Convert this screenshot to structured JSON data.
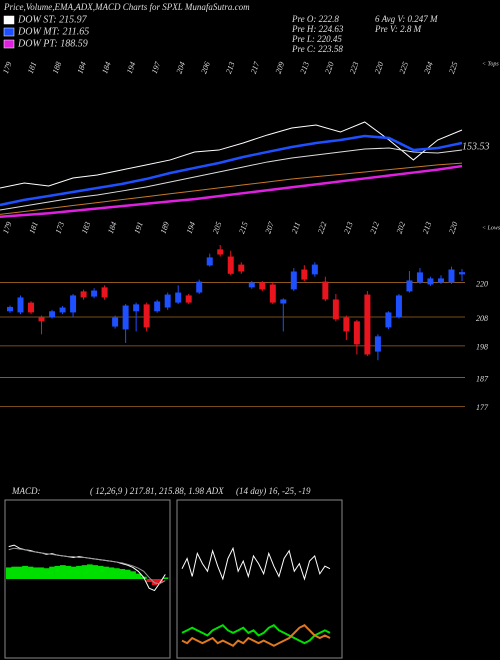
{
  "title": "Price,Volume,EMA,ADX,MACD Charts for SPXL MunafaSutra.com",
  "legend": [
    {
      "label": "DOW ST: 215.97",
      "color": "#ffffff"
    },
    {
      "label": "DOW MT: 211.65",
      "color": "#1e50ff"
    },
    {
      "label": "DOW PT: 188.59",
      "color": "#e020e0"
    }
  ],
  "stats": [
    "Pre O: 222.8",
    "Pre H: 224.63",
    "Pre L: 220.45",
    "Pre C: 223.58"
  ],
  "stats2": [
    "6 Avg V: 0.247 M",
    "Pre V: 2.8 M"
  ],
  "chart_data": [
    {
      "type": "line",
      "tops_label": "< Tops",
      "tops": [
        "179",
        "181",
        "188",
        "184",
        "184",
        "194",
        "197",
        "204",
        "206",
        "213",
        "217",
        "209",
        "213",
        "220",
        "223",
        "220",
        "225",
        "204",
        "225"
      ],
      "lows_label": "< Lows",
      "lows": [
        "179",
        "181",
        "173",
        "183",
        "184",
        "191",
        "189",
        "194",
        "205",
        "215",
        "207",
        "211",
        "222",
        "213",
        "212",
        "202",
        "213",
        "220"
      ],
      "annotation": "153.53",
      "ylim": [
        100,
        240
      ],
      "series": [
        {
          "name": "Price",
          "color": "#ffffff",
          "width": 1,
          "values": [
            131.4,
            135.6,
            133.1,
            139.9,
            142.4,
            146.7,
            150.9,
            155.2,
            161.9,
            163.6,
            169.6,
            176.4,
            182.3,
            184.8,
            178.9,
            187.4,
            172.1,
            155.2,
            172.1,
            180.6
          ]
        },
        {
          "name": "ST",
          "color": "#1e50ff",
          "width": 2.5,
          "values": [
            117,
            121.3,
            124.6,
            128,
            131.4,
            134.8,
            139,
            144.1,
            148.4,
            152.6,
            157.7,
            162,
            166.2,
            169.6,
            172.1,
            175.5,
            173.8,
            163.6,
            165.3,
            169.6
          ]
        },
        {
          "name": "MT",
          "color": "#dddddd",
          "width": 1,
          "values": [
            112.7,
            116.1,
            119.5,
            122.9,
            125.5,
            128.8,
            132.2,
            136.5,
            140.7,
            145,
            149.2,
            153.5,
            156.8,
            159.4,
            161.9,
            164.5,
            165.3,
            161.9,
            161.1,
            163.6
          ]
        },
        {
          "name": "LT",
          "color": "#c87828",
          "width": 1,
          "values": [
            109,
            111.5,
            114,
            116.5,
            119,
            121.5,
            124,
            126.5,
            129,
            131.5,
            134,
            136.5,
            139,
            141,
            143,
            145,
            147,
            149,
            151,
            152.5
          ]
        },
        {
          "name": "PT",
          "color": "#e020e0",
          "width": 2.5,
          "values": [
            107,
            108.5,
            110,
            112,
            114,
            116,
            118,
            120,
            122,
            124.5,
            127,
            129.5,
            132,
            134.5,
            137,
            139.5,
            142,
            144.5,
            147,
            150
          ]
        }
      ]
    },
    {
      "type": "candlestick",
      "ylim": [
        174,
        233
      ],
      "yticks": [
        220,
        208,
        198,
        187,
        177
      ],
      "up_color": "#1e50ff",
      "down_color": "#e8141e",
      "open": [
        210,
        209.6,
        213,
        208,
        208,
        209.6,
        209.6,
        216.9,
        215.1,
        218.3,
        204.7,
        203.7,
        210,
        212.4,
        210,
        211.3,
        213,
        215.5,
        216.5,
        225.9,
        231.5,
        229,
        226.2,
        218.3,
        220,
        219.3,
        212.7,
        217.6,
        224.5,
        222.8,
        220.3,
        214.1,
        207.8,
        206.5,
        215.8,
        196,
        204.4,
        207.9,
        216.9,
        220,
        219.3,
        220,
        220,
        222.8
      ],
      "high": [
        212,
        215.5,
        213.5,
        208.5,
        210.5,
        211.8,
        216,
        217.5,
        218,
        219,
        208.5,
        212.5,
        213,
        213,
        214,
        216.5,
        219,
        216,
        221,
        230,
        233,
        231,
        227,
        220.5,
        220.5,
        220,
        214.5,
        225,
        226,
        227,
        222,
        216,
        208.5,
        207,
        217,
        202,
        210,
        216,
        224,
        225,
        222,
        222.5,
        225.5,
        224.63
      ],
      "low": [
        209.5,
        209,
        209,
        202,
        207.5,
        209,
        208,
        214,
        214.5,
        214,
        204,
        199,
        203,
        203,
        209.5,
        210.5,
        212.5,
        212.5,
        216,
        225.5,
        229,
        222.5,
        223,
        217.8,
        217,
        212.5,
        203,
        217,
        220.5,
        222,
        213.5,
        206.5,
        200,
        195,
        194.5,
        193,
        203.8,
        207.5,
        216.5,
        219.5,
        218.8,
        219.5,
        219.5,
        220.45
      ],
      "close": [
        211.5,
        214.8,
        209.6,
        206.5,
        210,
        211.3,
        215.5,
        214.8,
        217.2,
        214.8,
        207.8,
        212,
        212.4,
        204.4,
        213.4,
        215.8,
        216.5,
        213,
        220.3,
        228.7,
        229.7,
        223,
        223.8,
        220,
        217.6,
        213,
        214.1,
        223.8,
        221,
        226.2,
        214.1,
        207.2,
        203,
        198.5,
        195,
        201.3,
        209.6,
        215.5,
        220.7,
        223.5,
        221.4,
        221.4,
        224.5,
        223.58
      ]
    },
    {
      "type": "macd",
      "label": "MACD:",
      "params": "( 12,26,9 ) 217.81, 215.88, 1.98 ADX",
      "ylim": [
        -10,
        10
      ],
      "hist_color": "#00e000",
      "neg_color": "#e8141e",
      "hist": [
        1.5,
        1.6,
        1.6,
        1.7,
        1.6,
        1.5,
        1.5,
        1.4,
        1.6,
        1.7,
        1.8,
        1.7,
        1.6,
        1.7,
        1.8,
        1.9,
        1.8,
        1.7,
        1.6,
        1.5,
        1.4,
        1.3,
        1.2,
        1,
        0.7,
        0.3,
        -0.4,
        -0.8,
        -0.5,
        0.2
      ],
      "series": [
        {
          "name": "MACD",
          "color": "#ffffff",
          "values": [
            4.2,
            4.4,
            4,
            3.8,
            3.7,
            3.5,
            3.4,
            3.2,
            3.3,
            3.1,
            3,
            2.9,
            2.8,
            2.9,
            2.8,
            2.7,
            2.6,
            2.5,
            2.4,
            2.3,
            2.2,
            2,
            1.8,
            1.5,
            1,
            0.2,
            -1.2,
            -1.5,
            -0.5,
            0.6
          ]
        },
        {
          "name": "Signal",
          "color": "#999999",
          "values": [
            3.8,
            4,
            3.9,
            3.8,
            3.6,
            3.5,
            3.4,
            3.3,
            3.2,
            3.1,
            3,
            2.9,
            2.9,
            2.8,
            2.8,
            2.7,
            2.6,
            2.5,
            2.4,
            2.3,
            2.2,
            2.1,
            1.9,
            1.7,
            1.4,
            1,
            0.2,
            -0.5,
            -0.6,
            -0.2
          ]
        }
      ]
    },
    {
      "type": "adx",
      "label": "(14 day) 16, -25, -19",
      "ylim": [
        0,
        60
      ],
      "series": [
        {
          "name": "ADX",
          "color": "#ffffff",
          "values": [
            34,
            38,
            31,
            40,
            36,
            33,
            41,
            35,
            30,
            38,
            42,
            33,
            37,
            31,
            39,
            36,
            32,
            40,
            35,
            31,
            38,
            41,
            33,
            36,
            30,
            37,
            39,
            32,
            35,
            34
          ]
        },
        {
          "name": "+DI",
          "color": "#00e000",
          "values": [
            9,
            10,
            11,
            10,
            9,
            8,
            10,
            11,
            12,
            10,
            9,
            10,
            11,
            9,
            10,
            8,
            9,
            11,
            12,
            10,
            9,
            8,
            7,
            6,
            5,
            6,
            8,
            9,
            10,
            9
          ]
        },
        {
          "name": "-DI",
          "color": "#e07820",
          "values": [
            6,
            5,
            7,
            6,
            5,
            6,
            7,
            5,
            6,
            5,
            4,
            6,
            5,
            7,
            6,
            5,
            6,
            5,
            4,
            5,
            6,
            7,
            9,
            11,
            12,
            10,
            8,
            7,
            8,
            7
          ]
        }
      ]
    }
  ]
}
